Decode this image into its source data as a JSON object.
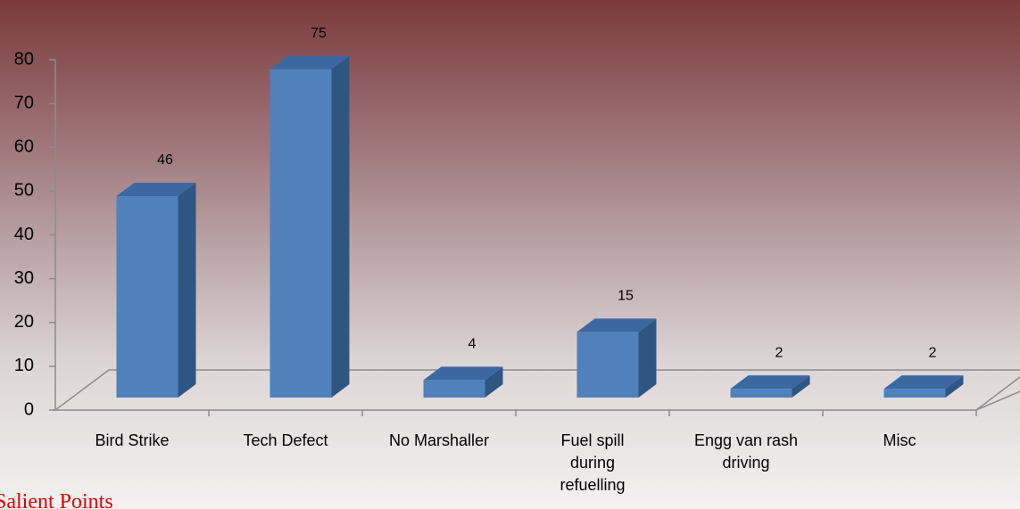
{
  "chart_data": {
    "type": "bar3d",
    "categories": [
      "Bird Strike",
      "Tech Defect",
      "No Marshaller",
      "Fuel spill during refuelling",
      "Engg van rash driving",
      "Misc"
    ],
    "values": [
      46,
      75,
      4,
      15,
      2,
      2
    ],
    "color": "#4f81bd",
    "ylim": [
      0,
      80
    ],
    "yticks": [
      0,
      10,
      20,
      30,
      40,
      50,
      60,
      70,
      80
    ],
    "annotations": [
      "Salient Points"
    ]
  }
}
